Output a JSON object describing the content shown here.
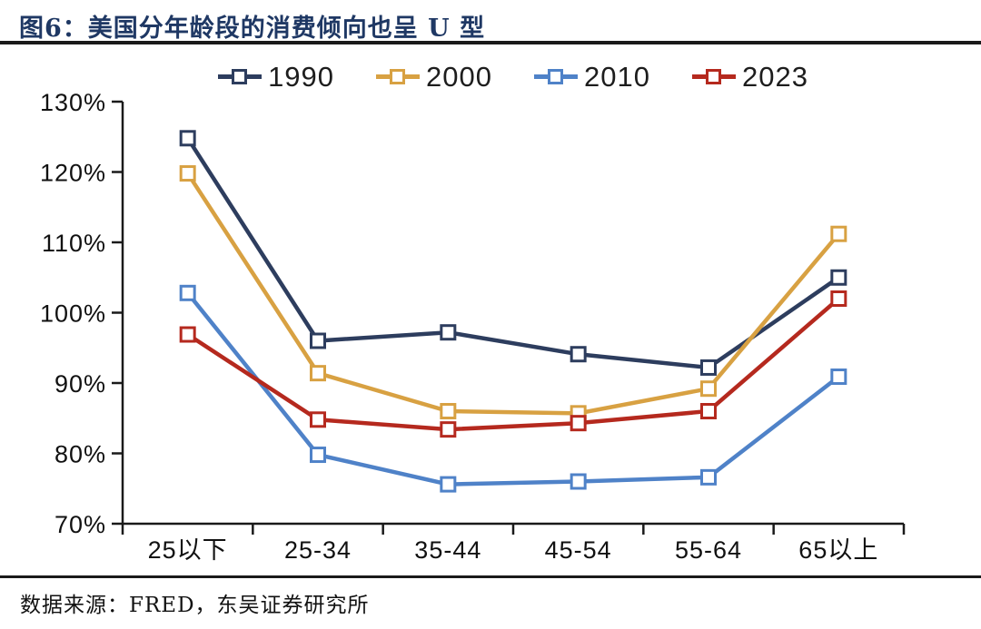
{
  "header": {
    "title": "图6：美国分年龄段的消费倾向也呈 U 型"
  },
  "footer": {
    "source": "数据来源：FRED，东吴证券研究所"
  },
  "colors": {
    "title": "#1F3864",
    "axis": "#1A1A1A",
    "text": "#111111",
    "background": "#FFFFFF"
  },
  "chart_data": {
    "type": "line",
    "title": "图6：美国分年龄段的消费倾向也呈 U 型",
    "categories": [
      "25以下",
      "25-34",
      "35-44",
      "45-54",
      "55-64",
      "65以上"
    ],
    "series": [
      {
        "name": "1990",
        "color": "#2D3D5E",
        "values": [
          124.8,
          96.0,
          97.2,
          94.1,
          92.2,
          105.0
        ]
      },
      {
        "name": "2000",
        "color": "#D8A142",
        "values": [
          119.8,
          91.4,
          86.0,
          85.7,
          89.2,
          111.2
        ]
      },
      {
        "name": "2010",
        "color": "#4F82C8",
        "values": [
          102.8,
          79.8,
          75.6,
          76.0,
          76.6,
          90.9
        ]
      },
      {
        "name": "2023",
        "color": "#B5291E",
        "values": [
          96.9,
          84.8,
          83.4,
          84.3,
          86.0,
          102.0
        ]
      }
    ],
    "xlabel": "",
    "ylabel": "",
    "ylim": [
      70,
      130
    ],
    "ytick_step": 10,
    "ytick_labels": [
      "70%",
      "80%",
      "90%",
      "100%",
      "110%",
      "120%",
      "130%"
    ],
    "legend_position": "top",
    "grid": false,
    "marker": "hollow-square"
  }
}
